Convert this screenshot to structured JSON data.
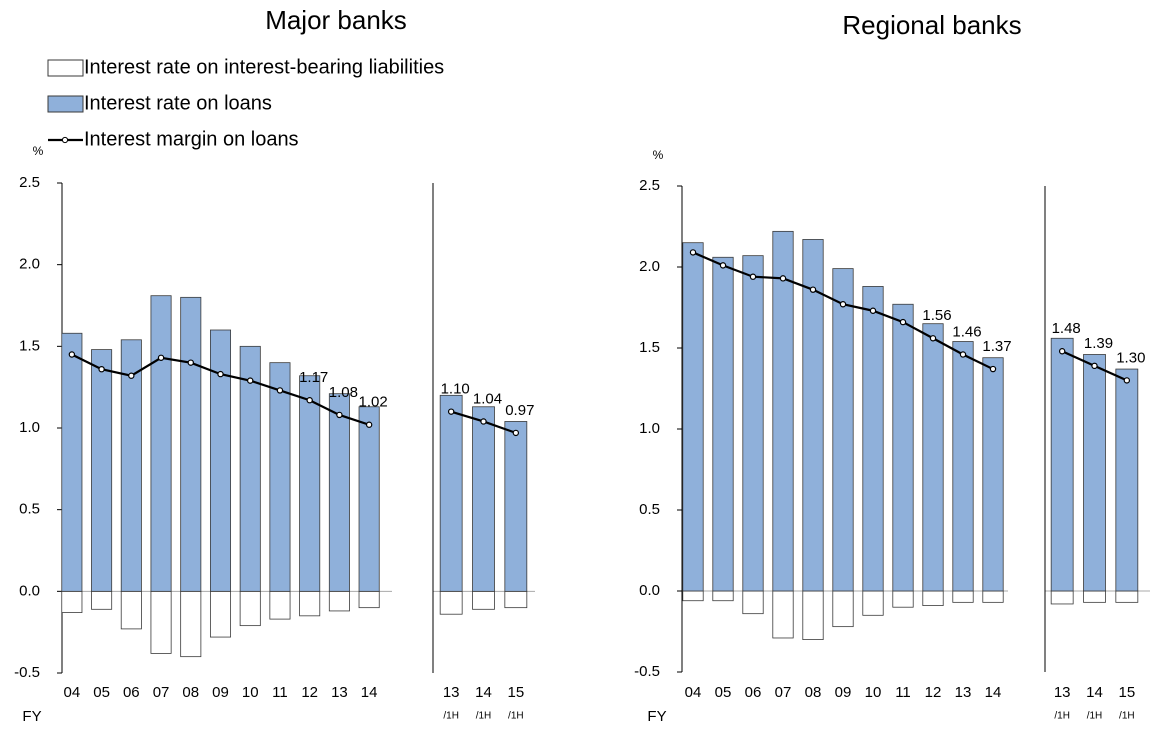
{
  "chart_data": [
    {
      "type": "bar",
      "title": "Major banks",
      "unit": "%",
      "xlabel": "FY",
      "ylim": [
        -0.5,
        2.5
      ],
      "yticks": [
        -0.5,
        {
          "value": 0,
          "label": "0.0"
        },
        0.5,
        {
          "value": 1,
          "label": "1.0"
        },
        1.5,
        {
          "value": 2,
          "label": "2.0"
        },
        2.5
      ],
      "panels": [
        {
          "categories": [
            "04",
            "05",
            "06",
            "07",
            "08",
            "09",
            "10",
            "11",
            "12",
            "13",
            "14"
          ],
          "series": [
            {
              "name": "Interest rate on interest-bearing liabilities",
              "kind": "bar",
              "color": "#ffffff",
              "values": [
                -0.13,
                -0.11,
                -0.23,
                -0.38,
                -0.4,
                -0.28,
                -0.21,
                -0.17,
                -0.15,
                -0.12,
                -0.1
              ]
            },
            {
              "name": "Interest rate on loans",
              "kind": "bar",
              "color": "#8fb0da",
              "values": [
                1.58,
                1.48,
                1.54,
                1.81,
                1.8,
                1.6,
                1.5,
                1.4,
                1.32,
                1.21,
                1.13
              ]
            },
            {
              "name": "Interest margin on loans",
              "kind": "line",
              "color": "#000000",
              "values": [
                1.45,
                1.36,
                1.32,
                1.43,
                1.4,
                1.33,
                1.29,
                1.23,
                1.17,
                1.08,
                1.02
              ],
              "value_labels": [
                null,
                null,
                null,
                null,
                null,
                null,
                null,
                null,
                "1.17",
                "1.08",
                "1.02"
              ]
            }
          ]
        },
        {
          "categories": [
            "13",
            "14",
            "15"
          ],
          "period_label": "/1H",
          "series": [
            {
              "kind": "bar",
              "color": "#ffffff",
              "values": [
                -0.14,
                -0.11,
                -0.1
              ]
            },
            {
              "kind": "bar",
              "color": "#8fb0da",
              "values": [
                1.2,
                1.13,
                1.04
              ]
            },
            {
              "kind": "line",
              "color": "#000000",
              "values": [
                1.1,
                1.04,
                0.97
              ],
              "value_labels": [
                "1.10",
                "1.04",
                "0.97"
              ]
            }
          ]
        }
      ]
    },
    {
      "type": "bar",
      "title": "Regional banks",
      "unit": "%",
      "xlabel": "FY",
      "ylim": [
        -0.5,
        2.5
      ],
      "yticks": [
        -0.5,
        {
          "value": 0,
          "label": "0.0"
        },
        0.5,
        {
          "value": 1,
          "label": "1.0"
        },
        1.5,
        {
          "value": 2,
          "label": "2.0"
        },
        2.5
      ],
      "panels": [
        {
          "categories": [
            "04",
            "05",
            "06",
            "07",
            "08",
            "09",
            "10",
            "11",
            "12",
            "13",
            "14"
          ],
          "series": [
            {
              "kind": "bar",
              "color": "#ffffff",
              "values": [
                -0.06,
                -0.06,
                -0.14,
                -0.29,
                -0.3,
                -0.22,
                -0.15,
                -0.1,
                -0.09,
                -0.07,
                -0.07
              ]
            },
            {
              "kind": "bar",
              "color": "#8fb0da",
              "values": [
                2.15,
                2.06,
                2.07,
                2.22,
                2.17,
                1.99,
                1.88,
                1.77,
                1.65,
                1.54,
                1.44
              ]
            },
            {
              "kind": "line",
              "color": "#000000",
              "values": [
                2.09,
                2.01,
                1.94,
                1.93,
                1.86,
                1.77,
                1.73,
                1.66,
                1.56,
                1.46,
                1.37
              ],
              "value_labels": [
                null,
                null,
                null,
                null,
                null,
                null,
                null,
                null,
                "1.56",
                "1.46",
                "1.37"
              ]
            }
          ]
        },
        {
          "categories": [
            "13",
            "14",
            "15"
          ],
          "period_label": "/1H",
          "series": [
            {
              "kind": "bar",
              "color": "#ffffff",
              "values": [
                -0.08,
                -0.07,
                -0.07
              ]
            },
            {
              "kind": "bar",
              "color": "#8fb0da",
              "values": [
                1.56,
                1.46,
                1.37
              ]
            },
            {
              "kind": "line",
              "color": "#000000",
              "values": [
                1.48,
                1.39,
                1.3
              ],
              "value_labels": [
                "1.48",
                "1.39",
                "1.30"
              ]
            }
          ]
        }
      ]
    }
  ]
}
